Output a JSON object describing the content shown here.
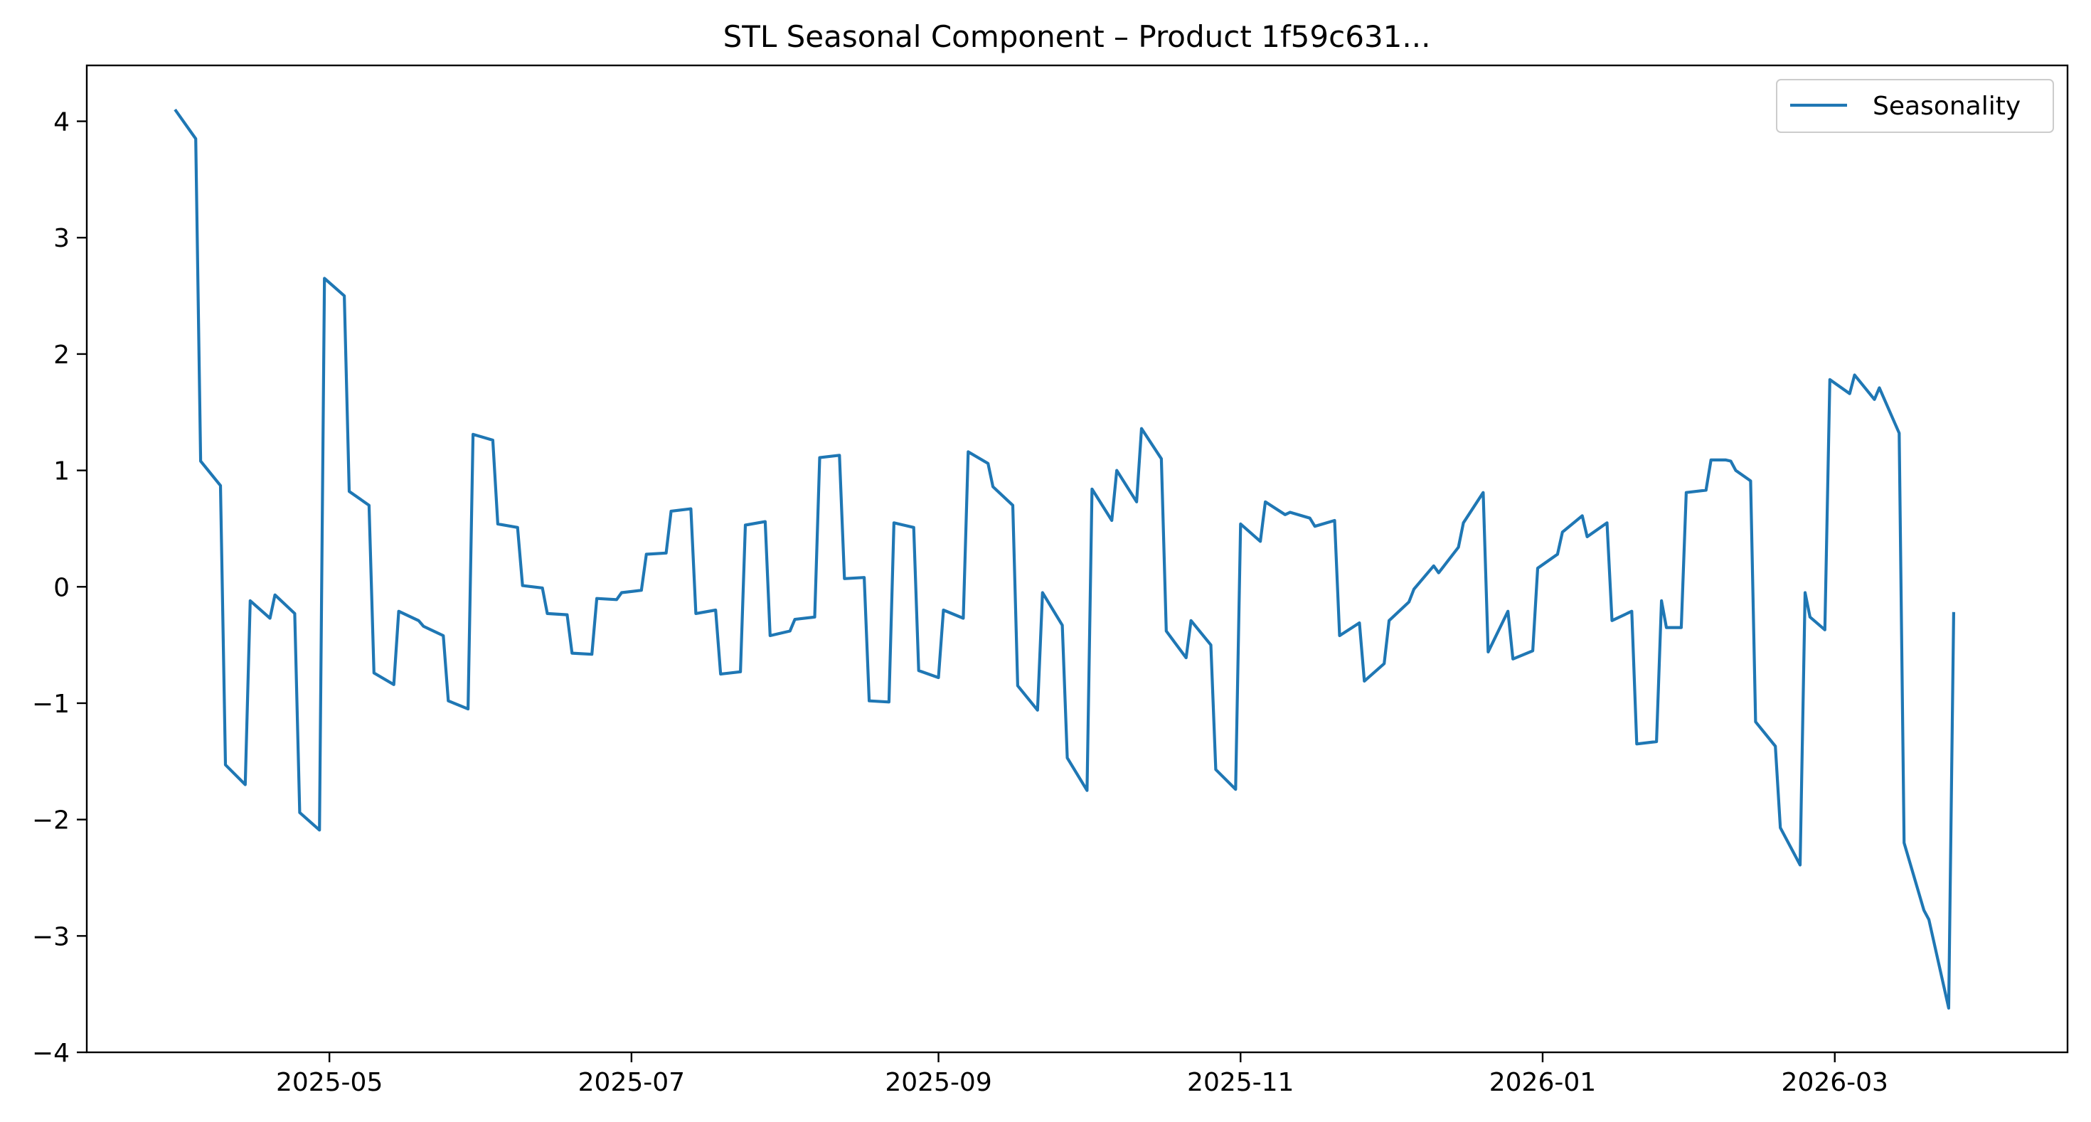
{
  "chart_data": {
    "type": "line",
    "title": "STL Seasonal Component – Product 1f59c631...",
    "xlabel": "",
    "ylabel": "",
    "xlim": [
      "2025-03-13",
      "2026-04-17"
    ],
    "ylim": [
      -4,
      4.48
    ],
    "x_ticks": [
      "2025-05-01",
      "2025-07-01",
      "2025-09-01",
      "2025-11-01",
      "2026-01-01",
      "2026-03-01"
    ],
    "x_tick_labels": [
      "2025-05",
      "2025-07",
      "2025-09",
      "2025-11",
      "2026-01",
      "2026-03"
    ],
    "y_ticks": [
      -4,
      -3,
      -2,
      -1,
      0,
      1,
      2,
      3,
      4
    ],
    "y_tick_labels": [
      "−4",
      "−3",
      "−2",
      "−1",
      "0",
      "1",
      "2",
      "3",
      "4"
    ],
    "grid": false,
    "legend": {
      "position": "top-right",
      "entries": [
        "Seasonality"
      ]
    },
    "series": [
      {
        "name": "Seasonality",
        "color": "#1f77b4",
        "points": [
          [
            "2025-03-31",
            4.09
          ],
          [
            "2025-04-04",
            3.85
          ],
          [
            "2025-04-05",
            1.08
          ],
          [
            "2025-04-09",
            0.87
          ],
          [
            "2025-04-10",
            -1.53
          ],
          [
            "2025-04-14",
            -1.7
          ],
          [
            "2025-04-15",
            -0.12
          ],
          [
            "2025-04-19",
            -0.27
          ],
          [
            "2025-04-20",
            -0.07
          ],
          [
            "2025-04-24",
            -0.23
          ],
          [
            "2025-04-25",
            -1.94
          ],
          [
            "2025-04-29",
            -2.09
          ],
          [
            "2025-04-30",
            2.65
          ],
          [
            "2025-05-04",
            2.5
          ],
          [
            "2025-05-05",
            0.82
          ],
          [
            "2025-05-09",
            0.7
          ],
          [
            "2025-05-10",
            -0.74
          ],
          [
            "2025-05-14",
            -0.84
          ],
          [
            "2025-05-15",
            -0.21
          ],
          [
            "2025-05-19",
            -0.29
          ],
          [
            "2025-05-20",
            -0.34
          ],
          [
            "2025-05-24",
            -0.42
          ],
          [
            "2025-05-25",
            -0.98
          ],
          [
            "2025-05-29",
            -1.05
          ],
          [
            "2025-05-30",
            1.31
          ],
          [
            "2025-06-03",
            1.26
          ],
          [
            "2025-06-04",
            0.54
          ],
          [
            "2025-06-08",
            0.51
          ],
          [
            "2025-06-09",
            0.01
          ],
          [
            "2025-06-13",
            -0.01
          ],
          [
            "2025-06-14",
            -0.23
          ],
          [
            "2025-06-18",
            -0.24
          ],
          [
            "2025-06-19",
            -0.57
          ],
          [
            "2025-06-23",
            -0.58
          ],
          [
            "2025-06-24",
            -0.1
          ],
          [
            "2025-06-28",
            -0.11
          ],
          [
            "2025-06-29",
            -0.05
          ],
          [
            "2025-07-03",
            -0.03
          ],
          [
            "2025-07-04",
            0.28
          ],
          [
            "2025-07-08",
            0.29
          ],
          [
            "2025-07-09",
            0.65
          ],
          [
            "2025-07-13",
            0.67
          ],
          [
            "2025-07-14",
            -0.23
          ],
          [
            "2025-07-18",
            -0.2
          ],
          [
            "2025-07-19",
            -0.75
          ],
          [
            "2025-07-23",
            -0.73
          ],
          [
            "2025-07-24",
            0.53
          ],
          [
            "2025-07-28",
            0.56
          ],
          [
            "2025-07-29",
            -0.42
          ],
          [
            "2025-08-02",
            -0.38
          ],
          [
            "2025-08-03",
            -0.28
          ],
          [
            "2025-08-07",
            -0.26
          ],
          [
            "2025-08-08",
            1.11
          ],
          [
            "2025-08-12",
            1.13
          ],
          [
            "2025-08-13",
            0.07
          ],
          [
            "2025-08-17",
            0.08
          ],
          [
            "2025-08-18",
            -0.98
          ],
          [
            "2025-08-22",
            -0.99
          ],
          [
            "2025-08-23",
            0.55
          ],
          [
            "2025-08-27",
            0.51
          ],
          [
            "2025-08-28",
            -0.72
          ],
          [
            "2025-09-01",
            -0.78
          ],
          [
            "2025-09-02",
            -0.2
          ],
          [
            "2025-09-06",
            -0.27
          ],
          [
            "2025-09-07",
            1.16
          ],
          [
            "2025-09-11",
            1.06
          ],
          [
            "2025-09-12",
            0.86
          ],
          [
            "2025-09-16",
            0.7
          ],
          [
            "2025-09-17",
            -0.85
          ],
          [
            "2025-09-21",
            -1.06
          ],
          [
            "2025-09-22",
            -0.05
          ],
          [
            "2025-09-26",
            -0.33
          ],
          [
            "2025-09-27",
            -1.47
          ],
          [
            "2025-10-01",
            -1.75
          ],
          [
            "2025-10-02",
            0.84
          ],
          [
            "2025-10-06",
            0.57
          ],
          [
            "2025-10-07",
            1.0
          ],
          [
            "2025-10-11",
            0.73
          ],
          [
            "2025-10-12",
            1.36
          ],
          [
            "2025-10-16",
            1.1
          ],
          [
            "2025-10-17",
            -0.38
          ],
          [
            "2025-10-21",
            -0.61
          ],
          [
            "2025-10-22",
            -0.29
          ],
          [
            "2025-10-26",
            -0.5
          ],
          [
            "2025-10-27",
            -1.57
          ],
          [
            "2025-10-31",
            -1.74
          ],
          [
            "2025-11-01",
            0.54
          ],
          [
            "2025-11-05",
            0.39
          ],
          [
            "2025-11-06",
            0.73
          ],
          [
            "2025-11-10",
            0.62
          ],
          [
            "2025-11-11",
            0.64
          ],
          [
            "2025-11-15",
            0.59
          ],
          [
            "2025-11-16",
            0.52
          ],
          [
            "2025-11-20",
            0.57
          ],
          [
            "2025-11-21",
            -0.42
          ],
          [
            "2025-11-25",
            -0.31
          ],
          [
            "2025-11-26",
            -0.81
          ],
          [
            "2025-11-30",
            -0.66
          ],
          [
            "2025-12-01",
            -0.29
          ],
          [
            "2025-12-05",
            -0.13
          ],
          [
            "2025-12-06",
            -0.02
          ],
          [
            "2025-12-10",
            0.18
          ],
          [
            "2025-12-11",
            0.12
          ],
          [
            "2025-12-15",
            0.34
          ],
          [
            "2025-12-16",
            0.55
          ],
          [
            "2025-12-20",
            0.81
          ],
          [
            "2025-12-21",
            -0.56
          ],
          [
            "2025-12-25",
            -0.21
          ],
          [
            "2025-12-26",
            -0.62
          ],
          [
            "2025-12-30",
            -0.55
          ],
          [
            "2025-12-31",
            0.16
          ],
          [
            "2026-01-04",
            0.28
          ],
          [
            "2026-01-05",
            0.47
          ],
          [
            "2026-01-09",
            0.61
          ],
          [
            "2026-01-10",
            0.43
          ],
          [
            "2026-01-14",
            0.55
          ],
          [
            "2026-01-15",
            -0.29
          ],
          [
            "2026-01-19",
            -0.21
          ],
          [
            "2026-01-20",
            -1.35
          ],
          [
            "2026-01-24",
            -1.33
          ],
          [
            "2026-01-25",
            -0.12
          ],
          [
            "2026-01-26",
            -0.35
          ],
          [
            "2026-01-29",
            -0.35
          ],
          [
            "2026-01-30",
            0.81
          ],
          [
            "2026-02-03",
            0.83
          ],
          [
            "2026-02-04",
            1.09
          ],
          [
            "2026-02-07",
            1.09
          ],
          [
            "2026-02-08",
            1.08
          ],
          [
            "2026-02-09",
            1.0
          ],
          [
            "2026-02-12",
            0.91
          ],
          [
            "2026-02-13",
            -1.16
          ],
          [
            "2026-02-17",
            -1.37
          ],
          [
            "2026-02-18",
            -2.07
          ],
          [
            "2026-02-22",
            -2.39
          ],
          [
            "2026-02-23",
            -0.05
          ],
          [
            "2026-02-24",
            -0.26
          ],
          [
            "2026-02-27",
            -0.37
          ],
          [
            "2026-02-28",
            1.78
          ],
          [
            "2026-03-04",
            1.66
          ],
          [
            "2026-03-05",
            1.82
          ],
          [
            "2026-03-09",
            1.61
          ],
          [
            "2026-03-10",
            1.71
          ],
          [
            "2026-03-14",
            1.32
          ],
          [
            "2026-03-15",
            -2.2
          ],
          [
            "2026-03-19",
            -2.78
          ],
          [
            "2026-03-20",
            -2.86
          ],
          [
            "2026-03-24",
            -3.62
          ],
          [
            "2026-03-25",
            -0.23
          ]
        ]
      }
    ]
  }
}
